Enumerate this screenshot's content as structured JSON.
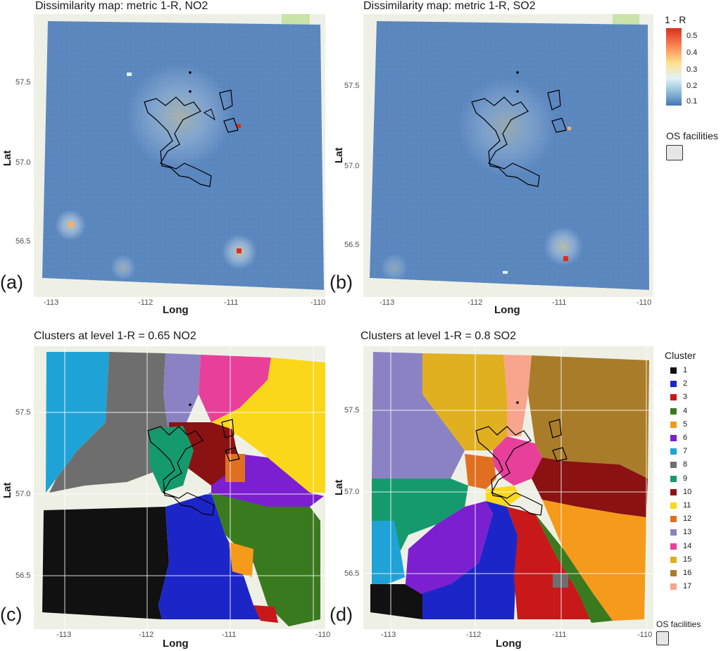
{
  "panels": [
    {
      "id": "a",
      "title": "Dissimilarity map: metric 1-R, NO2",
      "label": "(a)",
      "xlabel": "Long",
      "ylabel": "Lat",
      "xticks": [
        "-113",
        "-112",
        "-111",
        "-110"
      ],
      "yticks": [
        "57.5",
        "57.0",
        "56.5"
      ]
    },
    {
      "id": "b",
      "title": "Dissimilarity map: metric 1-R, SO2",
      "label": "(b)",
      "xlabel": "Long",
      "ylabel": "Lat",
      "xticks": [
        "-113",
        "-112",
        "-111",
        "-110"
      ],
      "yticks": [
        "57.5",
        "57.0",
        "56.5"
      ]
    },
    {
      "id": "c",
      "title": "Clusters at level 1-R = 0.65 NO2",
      "label": "(c)",
      "xlabel": "Long",
      "ylabel": "Lat",
      "xticks": [
        "-113",
        "-112",
        "-111",
        "-110"
      ],
      "yticks": [
        "57.5",
        "57.0",
        "56.5"
      ]
    },
    {
      "id": "d",
      "title": "Clusters at level 1-R = 0.8 SO2",
      "label": "(d)",
      "xlabel": "Long",
      "ylabel": "Lat",
      "xticks": [
        "-113",
        "-112",
        "-111",
        "-110"
      ],
      "yticks": [
        "57.5",
        "57.0",
        "56.5"
      ]
    }
  ],
  "color_legend": {
    "title": "1 - R",
    "ticks": [
      "0.5",
      "0.4",
      "0.3",
      "0.2",
      "0.1"
    ],
    "colors": [
      "#d7301f",
      "#fc8d59",
      "#fee090",
      "#e0f3f8",
      "#91bfdb",
      "#4575b4"
    ]
  },
  "facility_legend_top": {
    "title": "OS facilities"
  },
  "facility_legend_bottom": {
    "title": "OS facilities"
  },
  "cluster_legend": {
    "title": "Cluster",
    "items": [
      {
        "label": "1",
        "color": "#111111"
      },
      {
        "label": "2",
        "color": "#1c26c8"
      },
      {
        "label": "3",
        "color": "#c8181a"
      },
      {
        "label": "4",
        "color": "#3a7a1e"
      },
      {
        "label": "5",
        "color": "#f59a1a"
      },
      {
        "label": "6",
        "color": "#7b1fd1"
      },
      {
        "label": "7",
        "color": "#1fa3d6"
      },
      {
        "label": "8",
        "color": "#6e6e6e"
      },
      {
        "label": "9",
        "color": "#159a6e"
      },
      {
        "label": "10",
        "color": "#8b1212"
      },
      {
        "label": "11",
        "color": "#fbd71a"
      },
      {
        "label": "12",
        "color": "#e07020"
      },
      {
        "label": "13",
        "color": "#8b82c4"
      },
      {
        "label": "14",
        "color": "#e8409a"
      },
      {
        "label": "15",
        "color": "#e0b020"
      },
      {
        "label": "16",
        "color": "#a97c2a"
      },
      {
        "label": "17",
        "color": "#f7a58c"
      }
    ]
  }
}
